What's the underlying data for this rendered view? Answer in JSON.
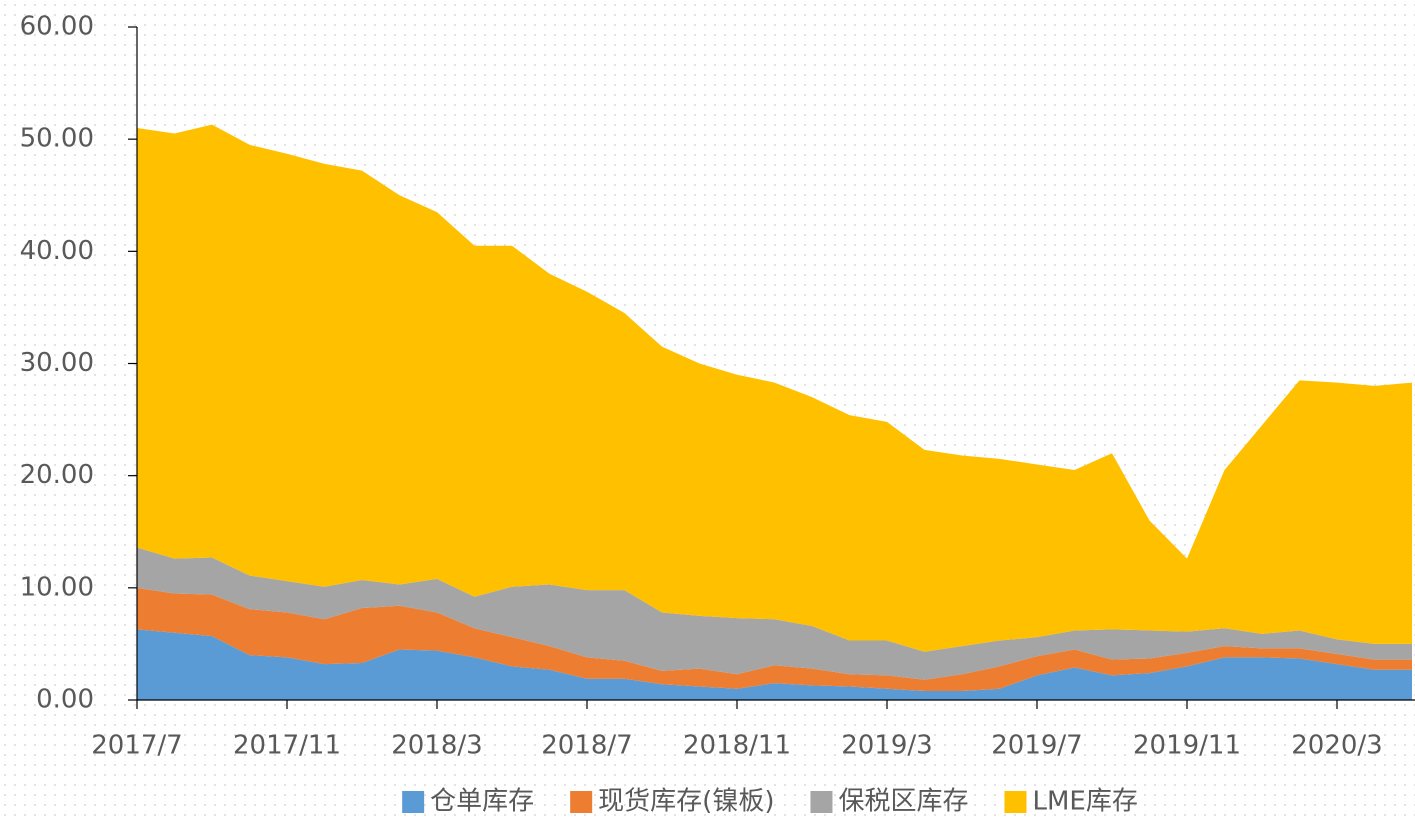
{
  "chart_data": {
    "type": "stacked_area",
    "x": [
      "2017/7",
      "2017/8",
      "2017/9",
      "2017/10",
      "2017/11",
      "2017/12",
      "2018/1",
      "2018/2",
      "2018/3",
      "2018/4",
      "2018/5",
      "2018/6",
      "2018/7",
      "2018/8",
      "2018/9",
      "2018/10",
      "2018/11",
      "2018/12",
      "2019/1",
      "2019/2",
      "2019/3",
      "2019/4",
      "2019/5",
      "2019/6",
      "2019/7",
      "2019/8",
      "2019/9",
      "2019/10",
      "2019/11",
      "2019/12",
      "2020/1",
      "2020/2",
      "2020/3",
      "2020/4",
      "2020/5"
    ],
    "xticks": [
      "2017/7",
      "2017/11",
      "2018/3",
      "2018/7",
      "2018/11",
      "2019/3",
      "2019/7",
      "2019/11",
      "2020/3"
    ],
    "ylim": [
      0,
      60
    ],
    "yticks": [
      {
        "value": 0,
        "label": "0.00"
      },
      {
        "value": 10,
        "label": "10.00"
      },
      {
        "value": 20,
        "label": "20.00"
      },
      {
        "value": 30,
        "label": "30.00"
      },
      {
        "value": 40,
        "label": "40.00"
      },
      {
        "value": 50,
        "label": "50.00"
      },
      {
        "value": 60,
        "label": "60.00"
      }
    ],
    "legend": "bottom",
    "series": [
      {
        "name": "仓单库存",
        "color": "#5b9bd5",
        "values": [
          6.3,
          6.0,
          5.7,
          4.0,
          3.8,
          3.2,
          3.3,
          4.5,
          4.4,
          3.8,
          3.0,
          2.7,
          1.9,
          1.9,
          1.4,
          1.2,
          1.0,
          1.5,
          1.3,
          1.2,
          1.0,
          0.8,
          0.8,
          1.0,
          2.2,
          2.9,
          2.2,
          2.4,
          3.0,
          3.8,
          3.8,
          3.7,
          3.2,
          2.7,
          2.7
        ]
      },
      {
        "name": "现货库存(镍板)",
        "color": "#ed7d31",
        "values": [
          3.7,
          3.5,
          3.7,
          4.1,
          4.0,
          4.0,
          4.9,
          3.9,
          3.4,
          2.6,
          2.6,
          2.1,
          1.9,
          1.6,
          1.2,
          1.6,
          1.3,
          1.6,
          1.5,
          1.1,
          1.2,
          1.0,
          1.5,
          2.0,
          1.7,
          1.6,
          1.4,
          1.3,
          1.2,
          1.0,
          0.8,
          0.9,
          0.9,
          0.9,
          0.9
        ]
      },
      {
        "name": "保税区库存",
        "color": "#a5a5a5",
        "values": [
          3.6,
          3.1,
          3.3,
          3.0,
          2.8,
          2.9,
          2.5,
          1.9,
          3.0,
          2.8,
          4.5,
          5.5,
          6.0,
          6.3,
          5.2,
          4.7,
          5.0,
          4.1,
          3.8,
          3.0,
          3.1,
          2.5,
          2.5,
          2.3,
          1.7,
          1.7,
          2.7,
          2.5,
          1.9,
          1.6,
          1.3,
          1.6,
          1.3,
          1.4,
          1.4
        ]
      },
      {
        "name": "LME库存",
        "color": "#ffc000",
        "values": [
          37.4,
          37.9,
          38.6,
          38.4,
          38.1,
          37.7,
          36.5,
          34.7,
          32.7,
          31.3,
          30.4,
          27.7,
          26.6,
          24.7,
          23.7,
          22.5,
          21.7,
          21.1,
          20.4,
          20.1,
          19.5,
          18.0,
          17.0,
          16.2,
          15.4,
          14.3,
          15.7,
          9.8,
          6.5,
          14.1,
          18.6,
          22.3,
          22.9,
          23.0,
          23.3
        ]
      }
    ]
  }
}
